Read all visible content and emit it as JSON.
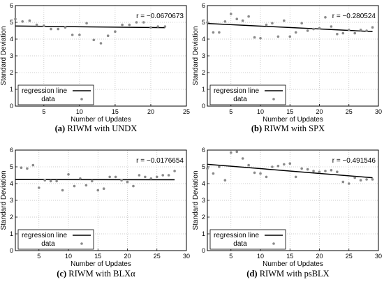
{
  "chart_data": [
    {
      "type": "scatter",
      "caption_label": "(a)",
      "caption_text": "RIWM with UNDX",
      "xlabel": "Number of Updates",
      "ylabel": "Standard Deviation",
      "xlim": [
        1,
        25
      ],
      "ylim": [
        0,
        6
      ],
      "xticks": [
        5,
        10,
        15,
        20,
        25
      ],
      "yticks": [
        0,
        1,
        2,
        3,
        4,
        5,
        6
      ],
      "grid": true,
      "legend_position": "bottom-left",
      "legend": [
        "regression line",
        "data"
      ],
      "annotation": "r = −0.0670673",
      "series": [
        {
          "name": "data",
          "x": [
            1,
            2,
            3,
            4,
            5,
            6,
            7,
            8,
            9,
            10,
            11,
            12,
            13,
            14,
            15,
            16,
            17,
            18,
            19,
            20,
            21,
            22
          ],
          "y": [
            5.2,
            5.05,
            5.1,
            4.85,
            4.8,
            4.6,
            4.6,
            4.7,
            4.25,
            4.25,
            4.95,
            3.95,
            3.75,
            4.2,
            4.45,
            4.85,
            4.85,
            5.0,
            5.0,
            4.7,
            4.75,
            4.75
          ]
        },
        {
          "name": "regression line",
          "x": [
            1,
            22
          ],
          "y": [
            4.78,
            4.68
          ]
        }
      ]
    },
    {
      "type": "scatter",
      "caption_label": "(b)",
      "caption_text": "RIWM with SPX",
      "xlabel": "Number of Updates",
      "ylabel": "Standard Deviation",
      "xlim": [
        1,
        30
      ],
      "ylim": [
        0,
        6
      ],
      "xticks": [
        5,
        10,
        15,
        20,
        25,
        30
      ],
      "yticks": [
        0,
        1,
        2,
        3,
        4,
        5,
        6
      ],
      "grid": true,
      "legend_position": "bottom-left",
      "legend": [
        "regression line",
        "data"
      ],
      "annotation": "r = −0.280524",
      "series": [
        {
          "name": "data",
          "x": [
            1,
            2,
            3,
            4,
            5,
            6,
            7,
            8,
            9,
            10,
            11,
            12,
            13,
            14,
            15,
            16,
            17,
            18,
            19,
            20,
            21,
            22,
            23,
            24,
            25,
            26,
            27,
            28,
            29
          ],
          "y": [
            5.0,
            4.4,
            4.4,
            5.05,
            5.5,
            5.2,
            5.1,
            5.35,
            4.1,
            4.05,
            4.85,
            4.95,
            4.15,
            5.1,
            4.15,
            4.4,
            4.95,
            4.5,
            4.6,
            4.65,
            5.3,
            4.75,
            4.3,
            4.35,
            4.55,
            4.35,
            4.55,
            4.5,
            4.7
          ]
        },
        {
          "name": "regression line",
          "x": [
            1,
            29
          ],
          "y": [
            4.93,
            4.45
          ]
        }
      ]
    },
    {
      "type": "scatter",
      "caption_label": "(c)",
      "caption_text": "RIWM with BLXα",
      "xlabel": "Number of Updates",
      "ylabel": "Standard Deviation",
      "xlim": [
        1,
        30
      ],
      "ylim": [
        0,
        6
      ],
      "xticks": [
        5,
        10,
        15,
        20,
        25,
        30
      ],
      "yticks": [
        0,
        1,
        2,
        3,
        4,
        5,
        6
      ],
      "grid": true,
      "legend_position": "bottom-left",
      "legend": [
        "regression line",
        "data"
      ],
      "annotation": "r = −0.0176654",
      "series": [
        {
          "name": "data",
          "x": [
            2,
            3,
            4,
            5,
            6,
            7,
            8,
            9,
            10,
            11,
            12,
            13,
            14,
            15,
            16,
            17,
            18,
            19,
            20,
            21,
            22,
            23,
            24,
            25,
            26,
            27,
            28
          ],
          "y": [
            4.95,
            4.9,
            5.1,
            3.75,
            4.2,
            4.15,
            4.15,
            3.6,
            4.55,
            3.85,
            4.3,
            3.9,
            4.15,
            3.6,
            3.7,
            4.4,
            4.4,
            4.2,
            4.1,
            3.85,
            4.5,
            4.4,
            4.3,
            4.4,
            4.5,
            4.5,
            4.75
          ]
        },
        {
          "name": "regression line",
          "x": [
            1,
            28
          ],
          "y": [
            4.24,
            4.23
          ]
        }
      ]
    },
    {
      "type": "scatter",
      "caption_label": "(d)",
      "caption_text": "RIWM with psBLX",
      "xlabel": "Number of Updates",
      "ylabel": "Standard Deviation",
      "xlim": [
        1,
        30
      ],
      "ylim": [
        0,
        6
      ],
      "xticks": [
        5,
        10,
        15,
        20,
        25,
        30
      ],
      "yticks": [
        0,
        1,
        2,
        3,
        4,
        5,
        6
      ],
      "grid": true,
      "legend_position": "bottom-left",
      "legend": [
        "regression line",
        "data"
      ],
      "annotation": "r = −0.491546",
      "series": [
        {
          "name": "data",
          "x": [
            1,
            2,
            3,
            4,
            5,
            6,
            7,
            8,
            9,
            10,
            11,
            12,
            13,
            14,
            15,
            16,
            17,
            18,
            19,
            20,
            21,
            22,
            23,
            24,
            25,
            26,
            27,
            28,
            29
          ],
          "y": [
            4.9,
            4.6,
            5.0,
            4.2,
            5.85,
            5.9,
            5.5,
            5.1,
            4.65,
            4.6,
            4.4,
            5.0,
            5.05,
            5.15,
            5.2,
            4.4,
            4.9,
            4.85,
            4.75,
            4.7,
            4.75,
            4.8,
            4.7,
            4.1,
            4.0,
            4.35,
            4.2,
            4.25,
            4.25
          ]
        },
        {
          "name": "regression line",
          "x": [
            1,
            29
          ],
          "y": [
            5.15,
            4.35
          ]
        }
      ]
    }
  ]
}
